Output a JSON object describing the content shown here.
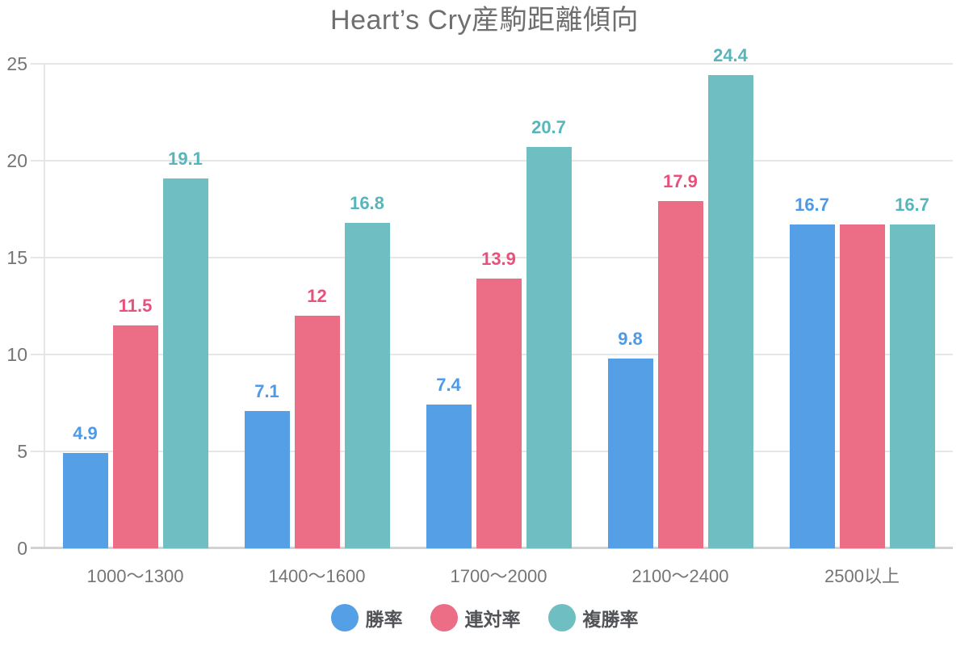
{
  "chart_data": {
    "type": "bar",
    "title": "Heart’s Cry産駒距離傾向",
    "categories": [
      "1000〜1300",
      "1400〜1600",
      "1700〜2000",
      "2100〜2400",
      "2500以上"
    ],
    "series": [
      {
        "name": "勝率",
        "color": "#559fe6",
        "label_color": "#4d9ae8",
        "values": [
          4.9,
          7.1,
          7.4,
          9.8,
          16.7
        ],
        "value_labels": [
          "4.9",
          "7.1",
          "7.4",
          "9.8",
          "16.7"
        ]
      },
      {
        "name": "連対率",
        "color": "#ec6d86",
        "label_color": "#e8517c",
        "values": [
          11.5,
          12,
          13.9,
          17.9,
          16.7
        ],
        "value_labels": [
          "11.5",
          "12",
          "13.9",
          "17.9",
          null
        ]
      },
      {
        "name": "複勝率",
        "color": "#6fbec2",
        "label_color": "#57b5bb",
        "values": [
          19.1,
          16.8,
          20.7,
          24.4,
          16.7
        ],
        "value_labels": [
          "19.1",
          "16.8",
          "20.7",
          "24.4",
          "16.7"
        ]
      }
    ],
    "ylim": [
      0,
      25
    ],
    "yticks": [
      0,
      5,
      10,
      15,
      20,
      25
    ],
    "grid": true,
    "legend_position": "bottom",
    "axis_text_color": "#757575",
    "gridline_color": "#e6e6e6",
    "title_color": "#6f6f6f"
  }
}
